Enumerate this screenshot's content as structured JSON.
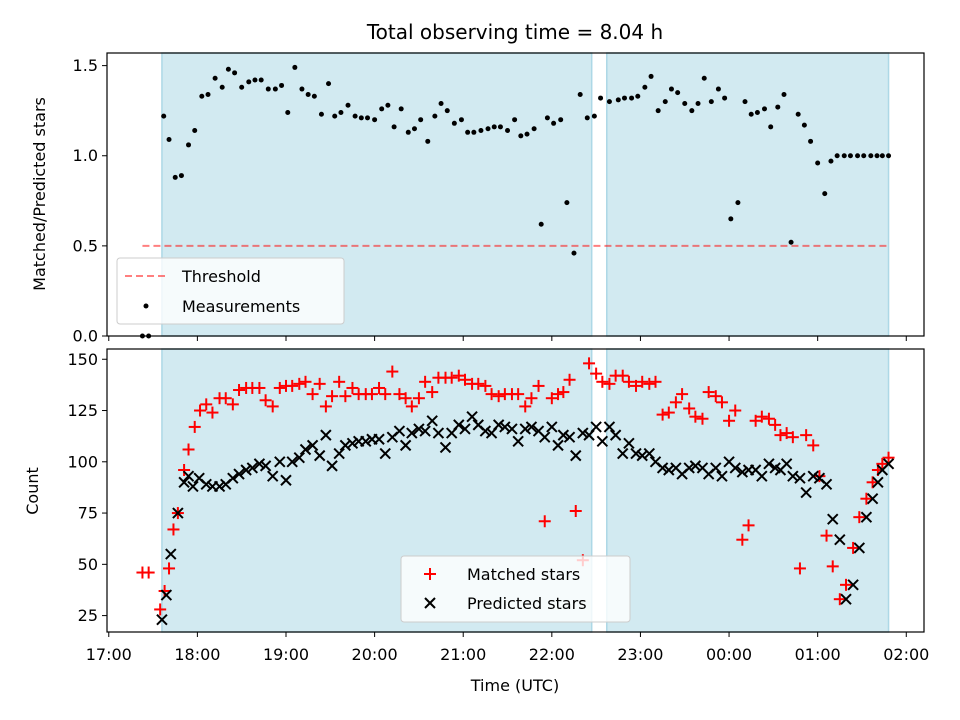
{
  "chart_data": {
    "title": "Total observing time = 8.04 h",
    "xlabel": "Time (UTC)",
    "x_tick_labels": [
      "17:00",
      "18:00",
      "19:00",
      "20:00",
      "21:00",
      "22:00",
      "23:00",
      "00:00",
      "01:00",
      "02:00"
    ],
    "x_range_hours": [
      16.98,
      26.2
    ],
    "shaded_intervals": [
      [
        17.6,
        22.45
      ],
      [
        22.62,
        25.8
      ]
    ],
    "colors": {
      "shade": "#add8e6",
      "threshold": "#ff0000",
      "matched": "#ff0000",
      "predicted": "#000000"
    },
    "panels": [
      {
        "type": "scatter",
        "ylabel": "Matched/Predicted stars",
        "ylim": [
          0,
          1.57
        ],
        "yticks": [
          0.0,
          0.5,
          1.0,
          1.5
        ],
        "y_tick_labels": [
          "0.0",
          "0.5",
          "1.0",
          "1.5"
        ],
        "legend_position": "lower-left",
        "threshold": {
          "name": "Threshold",
          "y": 0.5,
          "x_range": [
            17.38,
            25.8
          ]
        },
        "series": [
          {
            "name": "Measurements",
            "marker": "dot",
            "x": [
              17.38,
              17.45,
              17.62,
              17.68,
              17.75,
              17.82,
              17.9,
              17.97,
              18.05,
              18.12,
              18.2,
              18.28,
              18.35,
              18.42,
              18.5,
              18.58,
              18.65,
              18.72,
              18.8,
              18.88,
              18.95,
              19.02,
              19.1,
              19.18,
              19.25,
              19.32,
              19.4,
              19.48,
              19.55,
              19.62,
              19.7,
              19.78,
              19.85,
              19.92,
              20.0,
              20.08,
              20.15,
              20.22,
              20.3,
              20.38,
              20.45,
              20.52,
              20.6,
              20.68,
              20.75,
              20.82,
              20.9,
              20.98,
              21.05,
              21.12,
              21.2,
              21.28,
              21.35,
              21.42,
              21.5,
              21.58,
              21.65,
              21.72,
              21.8,
              21.88,
              21.95,
              22.02,
              22.1,
              22.17,
              22.25,
              22.32,
              22.4,
              22.48,
              22.55,
              22.65,
              22.75,
              22.82,
              22.9,
              22.97,
              23.05,
              23.12,
              23.2,
              23.28,
              23.35,
              23.42,
              23.5,
              23.58,
              23.65,
              23.72,
              23.8,
              23.88,
              23.95,
              24.02,
              24.1,
              24.18,
              24.25,
              24.32,
              24.4,
              24.47,
              24.55,
              24.62,
              24.7,
              24.78,
              24.85,
              24.92,
              25.0,
              25.08,
              25.15,
              25.22,
              25.3,
              25.37,
              25.45,
              25.52,
              25.6,
              25.67,
              25.73,
              25.8
            ],
            "y": [
              0.0,
              0.0,
              1.22,
              1.09,
              0.88,
              0.89,
              1.06,
              1.14,
              1.33,
              1.34,
              1.43,
              1.38,
              1.48,
              1.46,
              1.38,
              1.41,
              1.42,
              1.42,
              1.37,
              1.37,
              1.39,
              1.24,
              1.49,
              1.37,
              1.34,
              1.33,
              1.23,
              1.4,
              1.22,
              1.24,
              1.28,
              1.22,
              1.21,
              1.21,
              1.2,
              1.26,
              1.28,
              1.16,
              1.26,
              1.13,
              1.15,
              1.2,
              1.08,
              1.22,
              1.29,
              1.25,
              1.18,
              1.2,
              1.13,
              1.13,
              1.14,
              1.15,
              1.16,
              1.16,
              1.14,
              1.2,
              1.11,
              1.12,
              1.15,
              0.62,
              1.21,
              1.18,
              1.2,
              0.74,
              0.46,
              1.34,
              1.21,
              1.22,
              1.32,
              1.3,
              1.31,
              1.32,
              1.32,
              1.33,
              1.38,
              1.44,
              1.25,
              1.3,
              1.37,
              1.35,
              1.29,
              1.25,
              1.29,
              1.43,
              1.3,
              1.37,
              1.32,
              0.65,
              0.74,
              1.3,
              1.23,
              1.24,
              1.26,
              1.16,
              1.27,
              1.34,
              0.52,
              1.23,
              1.17,
              1.08,
              0.96,
              0.79,
              0.97,
              1.0,
              1.0,
              1.0,
              1.0,
              1.0,
              1.0,
              1.0,
              1.0,
              1.0
            ]
          }
        ]
      },
      {
        "type": "scatter",
        "ylabel": "Count",
        "ylim": [
          17,
          155
        ],
        "yticks": [
          25,
          50,
          75,
          100,
          125,
          150
        ],
        "y_tick_labels": [
          "25",
          "50",
          "75",
          "100",
          "125",
          "150"
        ],
        "legend_position": "lower-center",
        "series": [
          {
            "name": "Matched stars",
            "marker": "plus",
            "x": [
              17.38,
              17.45,
              17.58,
              17.63,
              17.68,
              17.73,
              17.78,
              17.85,
              17.9,
              17.97,
              18.03,
              18.1,
              18.17,
              18.25,
              18.32,
              18.4,
              18.47,
              18.55,
              18.62,
              18.7,
              18.77,
              18.85,
              18.93,
              19.0,
              19.07,
              19.15,
              19.22,
              19.3,
              19.38,
              19.45,
              19.52,
              19.6,
              19.67,
              19.75,
              19.82,
              19.9,
              19.97,
              20.05,
              20.12,
              20.2,
              20.28,
              20.35,
              20.42,
              20.5,
              20.57,
              20.65,
              20.72,
              20.8,
              20.87,
              20.95,
              21.02,
              21.1,
              21.17,
              21.25,
              21.32,
              21.4,
              21.47,
              21.55,
              21.62,
              21.7,
              21.77,
              21.85,
              21.92,
              22.0,
              22.07,
              22.13,
              22.2,
              22.27,
              22.35,
              22.42,
              22.5,
              22.57,
              22.65,
              22.72,
              22.8,
              22.87,
              22.95,
              23.02,
              23.1,
              23.17,
              23.25,
              23.32,
              23.4,
              23.47,
              23.55,
              23.62,
              23.7,
              23.77,
              23.85,
              23.92,
              24.0,
              24.07,
              24.15,
              24.22,
              24.3,
              24.37,
              24.45,
              24.52,
              24.58,
              24.65,
              24.72,
              24.8,
              24.87,
              24.95,
              25.02,
              25.1,
              25.17,
              25.25,
              25.32,
              25.4,
              25.47,
              25.55,
              25.62,
              25.68,
              25.73,
              25.8
            ],
            "y": [
              46,
              46,
              28,
              37,
              48,
              67,
              75,
              96,
              106,
              117,
              125,
              128,
              124,
              131,
              131,
              128,
              135,
              136,
              136,
              136,
              130,
              127,
              136,
              137,
              137,
              138,
              139,
              133,
              138,
              127,
              132,
              139,
              132,
              136,
              133,
              133,
              133,
              136,
              133,
              144,
              133,
              131,
              127,
              131,
              139,
              134,
              141,
              141,
              141,
              142,
              140,
              138,
              138,
              137,
              133,
              132,
              133,
              133,
              133,
              127,
              131,
              137,
              71,
              131,
              133,
              134,
              140,
              76,
              52,
              148,
              143,
              139,
              138,
              142,
              142,
              139,
              137,
              139,
              138,
              139,
              123,
              124,
              129,
              133,
              126,
              122,
              121,
              134,
              132,
              129,
              120,
              125,
              62,
              69,
              120,
              122,
              121,
              118,
              113,
              114,
              112,
              48,
              113,
              108,
              93,
              64,
              49,
              33,
              40,
              58,
              73,
              82,
              90,
              96,
              99,
              102
            ],
            "note": ""
          },
          {
            "name": "Predicted stars",
            "marker": "x",
            "x": [
              17.6,
              17.65,
              17.7,
              17.78,
              17.85,
              17.9,
              17.95,
              18.02,
              18.1,
              18.17,
              18.25,
              18.32,
              18.4,
              18.47,
              18.55,
              18.62,
              18.7,
              18.77,
              18.85,
              18.93,
              19.0,
              19.07,
              19.15,
              19.22,
              19.3,
              19.38,
              19.45,
              19.52,
              19.6,
              19.67,
              19.75,
              19.82,
              19.9,
              19.97,
              20.05,
              20.12,
              20.2,
              20.28,
              20.35,
              20.42,
              20.5,
              20.57,
              20.65,
              20.72,
              20.8,
              20.87,
              20.95,
              21.02,
              21.1,
              21.17,
              21.25,
              21.32,
              21.4,
              21.47,
              21.55,
              21.62,
              21.7,
              21.77,
              21.85,
              21.92,
              22.0,
              22.07,
              22.13,
              22.2,
              22.27,
              22.35,
              22.42,
              22.5,
              22.57,
              22.65,
              22.72,
              22.8,
              22.87,
              22.95,
              23.02,
              23.1,
              23.17,
              23.25,
              23.32,
              23.4,
              23.47,
              23.55,
              23.62,
              23.7,
              23.77,
              23.85,
              23.92,
              24.0,
              24.07,
              24.15,
              24.22,
              24.3,
              24.37,
              24.45,
              24.52,
              24.58,
              24.65,
              24.72,
              24.8,
              24.87,
              24.95,
              25.02,
              25.1,
              25.17,
              25.25,
              25.32,
              25.4,
              25.47,
              25.55,
              25.62,
              25.68,
              25.73,
              25.8
            ],
            "y": [
              23,
              35,
              55,
              75,
              90,
              93,
              88,
              92,
              89,
              88,
              88,
              89,
              92,
              94,
              96,
              97,
              99,
              98,
              93,
              100,
              91,
              100,
              102,
              106,
              108,
              103,
              113,
              98,
              104,
              108,
              109,
              110,
              110,
              111,
              111,
              104,
              112,
              115,
              108,
              114,
              116,
              115,
              120,
              114,
              107,
              114,
              118,
              116,
              122,
              118,
              115,
              114,
              118,
              117,
              116,
              110,
              116,
              117,
              115,
              112,
              117,
              108,
              113,
              112,
              103,
              114,
              113,
              117,
              110,
              117,
              113,
              104,
              109,
              104,
              103,
              104,
              100,
              97,
              96,
              97,
              94,
              97,
              98,
              97,
              94,
              97,
              93,
              100,
              97,
              95,
              96,
              96,
              93,
              99,
              97,
              96,
              99,
              93,
              92,
              85,
              93,
              92,
              89,
              72,
              62,
              33,
              40,
              58,
              73,
              82,
              90,
              96,
              99
            ]
          }
        ]
      }
    ]
  }
}
